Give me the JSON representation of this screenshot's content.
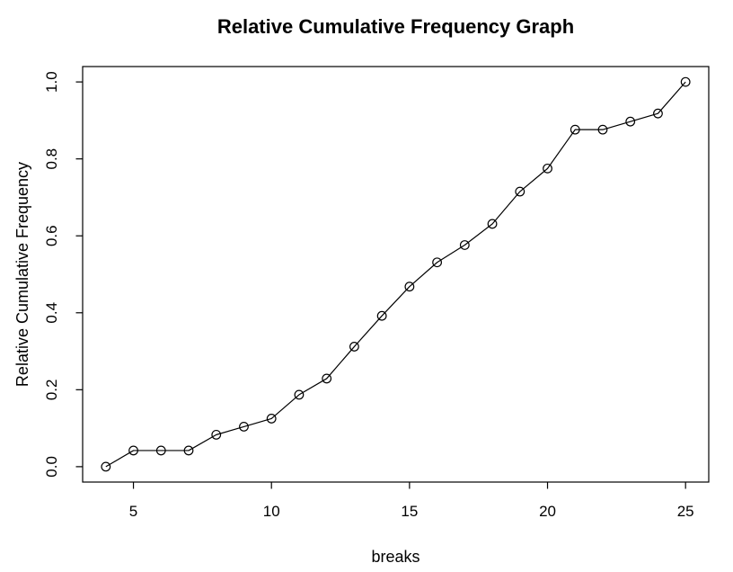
{
  "chart_data": {
    "type": "line",
    "title": "Relative Cumulative Frequency Graph",
    "xlabel": "breaks",
    "ylabel": "Relative Cumulative Frequency",
    "x": [
      4,
      5,
      6,
      7,
      8,
      9,
      10,
      11,
      12,
      13,
      14,
      15,
      16,
      17,
      18,
      19,
      20,
      21,
      22,
      23,
      24,
      25
    ],
    "y": [
      0.0,
      0.042,
      0.042,
      0.042,
      0.083,
      0.104,
      0.125,
      0.187,
      0.229,
      0.312,
      0.392,
      0.468,
      0.531,
      0.576,
      0.631,
      0.715,
      0.775,
      0.876,
      0.876,
      0.897,
      0.918,
      1.0
    ],
    "xticks": [
      5,
      10,
      15,
      20,
      25
    ],
    "xtick_labels": [
      "5",
      "10",
      "15",
      "20",
      "25"
    ],
    "yticks": [
      0.0,
      0.2,
      0.4,
      0.6,
      0.8,
      1.0
    ],
    "ytick_labels": [
      "0.0",
      "0.2",
      "0.4",
      "0.6",
      "0.8",
      "1.0"
    ],
    "xlim": [
      3.16,
      25.84
    ],
    "ylim": [
      -0.04,
      1.04
    ],
    "grid": false,
    "legend": null,
    "marker": "open-circle",
    "line_color": "#000000",
    "axis_color": "#000000",
    "background": "#ffffff"
  }
}
